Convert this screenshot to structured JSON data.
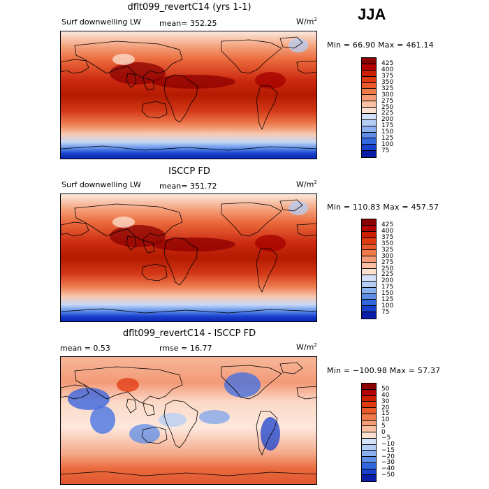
{
  "season": "JJA",
  "panels": [
    {
      "title": "dflt099_revertC14 (yrs 1-1)",
      "left_label": "Surf downwelling LW",
      "stat_label": "mean=",
      "stat_value": "352.25",
      "units": "W/m",
      "units_sup": "2",
      "minmax": "Min =   66.90 Max = 461.14",
      "colorbar": {
        "labels": [
          "425",
          "400",
          "375",
          "350",
          "325",
          "300",
          "275",
          "250",
          "225",
          "200",
          "175",
          "150",
          "125",
          "100",
          "75"
        ],
        "colors": [
          "#8b0000",
          "#b30000",
          "#cc1f00",
          "#e03a10",
          "#ea5a2c",
          "#f07a4a",
          "#f59b75",
          "#fac0a4",
          "#fde1d0",
          "#d4e3fb",
          "#b3cdf5",
          "#8ab0ef",
          "#5e8ee8",
          "#3268de",
          "#1841cf",
          "#0a1da8"
        ]
      },
      "map_kind": "abs"
    },
    {
      "title": "ISCCP FD",
      "left_label": "Surf downwelling LW",
      "stat_label": "mean=",
      "stat_value": "351.72",
      "units": "W/m",
      "units_sup": "2",
      "minmax": "Min = 110.83 Max = 457.57",
      "colorbar": {
        "labels": [
          "425",
          "400",
          "375",
          "350",
          "325",
          "300",
          "275",
          "250",
          "225",
          "200",
          "175",
          "150",
          "125",
          "100",
          "75"
        ],
        "colors": [
          "#8b0000",
          "#b30000",
          "#cc1f00",
          "#e03a10",
          "#ea5a2c",
          "#f07a4a",
          "#f59b75",
          "#fac0a4",
          "#fde1d0",
          "#d4e3fb",
          "#b3cdf5",
          "#8ab0ef",
          "#5e8ee8",
          "#3268de",
          "#1841cf",
          "#0a1da8"
        ]
      },
      "map_kind": "abs"
    },
    {
      "title": "dflt099_revertC14 - ISCCP FD",
      "left_label": "mean =    0.53",
      "stat_label": "rmse =",
      "stat_value": "16.77",
      "units": "W/m",
      "units_sup": "2",
      "minmax": "Min = −100.98 Max =  57.37",
      "colorbar": {
        "labels": [
          "50",
          "40",
          "30",
          "20",
          "15",
          "10",
          "5",
          "0",
          "−5",
          "−10",
          "−15",
          "−20",
          "−30",
          "−40",
          "−50"
        ],
        "colors": [
          "#8b0000",
          "#b30000",
          "#cc1f00",
          "#e03a10",
          "#ea5a2c",
          "#f07a4a",
          "#f59b75",
          "#fac0a4",
          "#fde1d0",
          "#d4e3fb",
          "#b3cdf5",
          "#8ab0ef",
          "#5e8ee8",
          "#3268de",
          "#1841cf",
          "#0a1da8"
        ]
      },
      "map_kind": "diff"
    }
  ]
}
